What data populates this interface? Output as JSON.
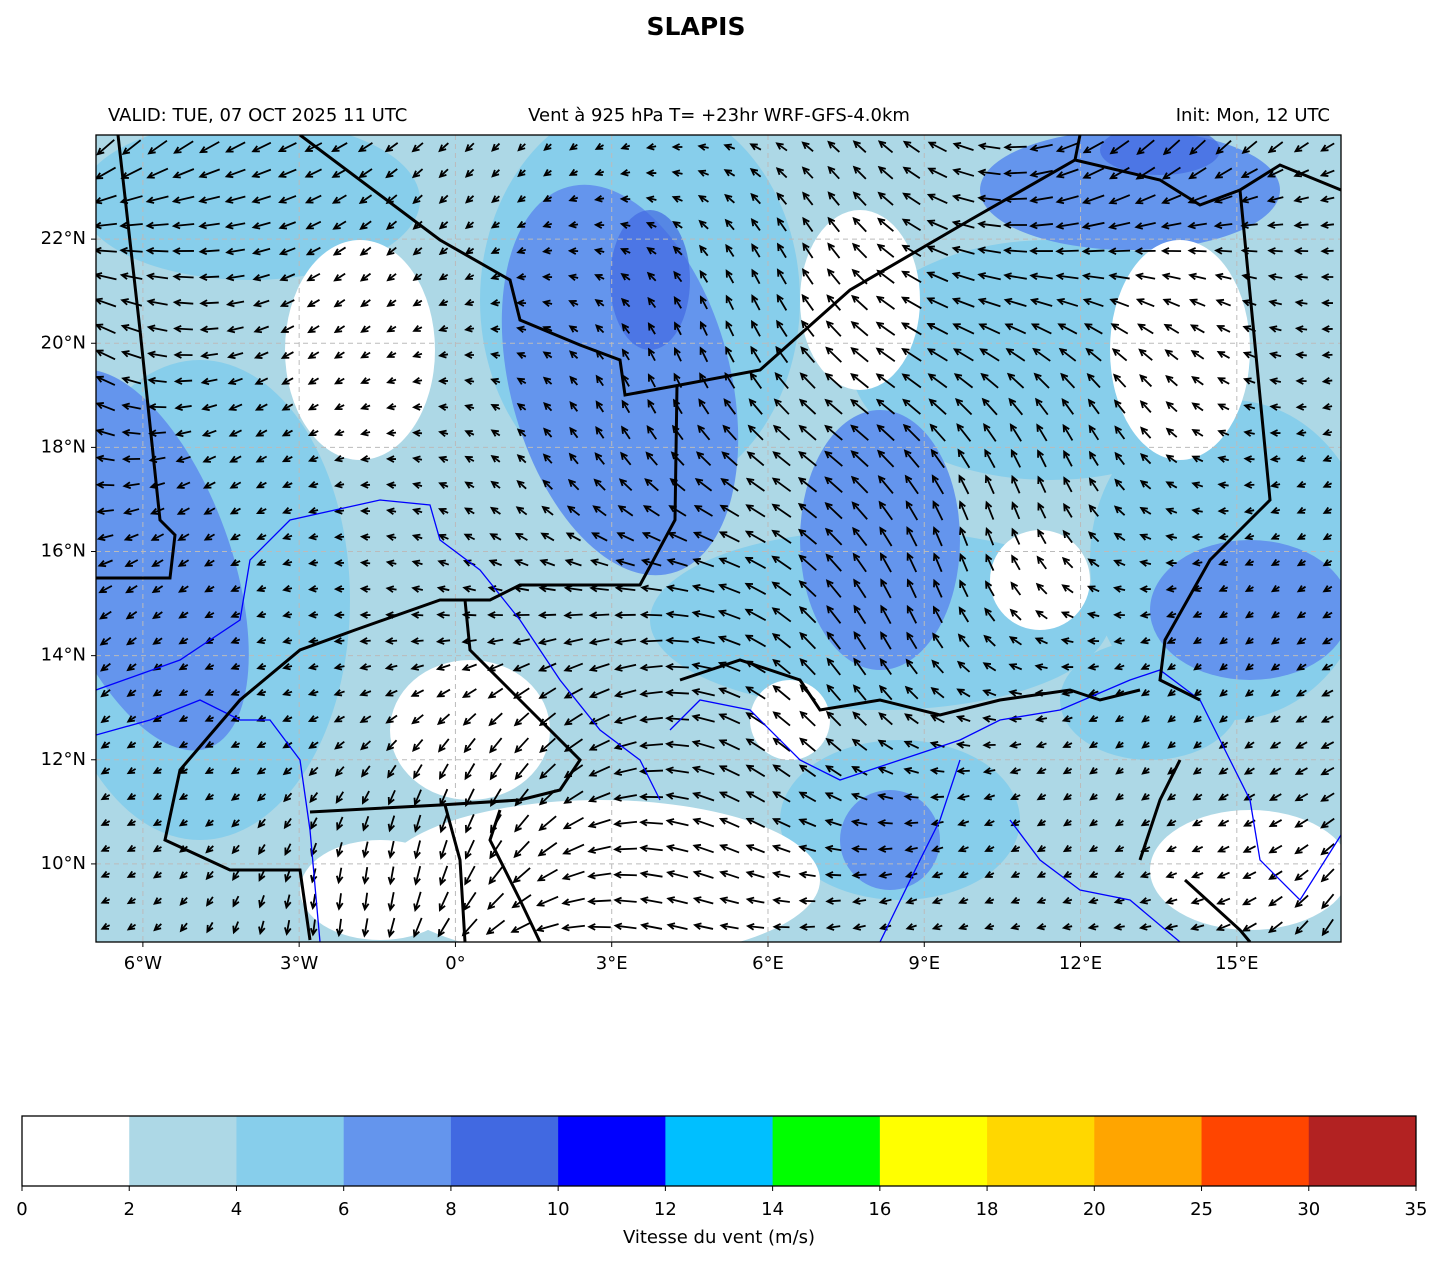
{
  "title": "SLAPIS",
  "header": {
    "left": "VALID: TUE, 07 OCT 2025 11 UTC",
    "center": "Vent à 925 hPa T= +23hr  WRF-GFS-4.0km",
    "right": "Init: Mon, 12 UTC"
  },
  "map": {
    "lon_range": [
      -6.9,
      17
    ],
    "lat_range": [
      8.5,
      24
    ],
    "xticks": [
      {
        "value": -6,
        "label": "6°W"
      },
      {
        "value": -3,
        "label": "3°W"
      },
      {
        "value": 0,
        "label": "0°"
      },
      {
        "value": 3,
        "label": "3°E"
      },
      {
        "value": 6,
        "label": "6°E"
      },
      {
        "value": 9,
        "label": "9°E"
      },
      {
        "value": 12,
        "label": "12°E"
      },
      {
        "value": 15,
        "label": "15°E"
      }
    ],
    "yticks": [
      {
        "value": 10,
        "label": "10°N"
      },
      {
        "value": 12,
        "label": "12°N"
      },
      {
        "value": 14,
        "label": "14°N"
      },
      {
        "value": 16,
        "label": "16°N"
      },
      {
        "value": 18,
        "label": "18°N"
      },
      {
        "value": 20,
        "label": "20°N"
      },
      {
        "value": 22,
        "label": "22°N"
      }
    ],
    "grid": true
  },
  "colorbar": {
    "label": "Vitesse du vent (m/s)",
    "bounds": [
      0,
      2,
      4,
      6,
      8,
      10,
      12,
      14,
      16,
      18,
      20,
      25,
      30,
      35
    ],
    "colors": [
      "#ffffff",
      "#add8e6",
      "#87ceeb",
      "#6495ed",
      "#4169e1",
      "#0000ff",
      "#00bfff",
      "#00ff00",
      "#ffff00",
      "#ffd700",
      "#ffa500",
      "#ff4500",
      "#b22222"
    ]
  }
}
